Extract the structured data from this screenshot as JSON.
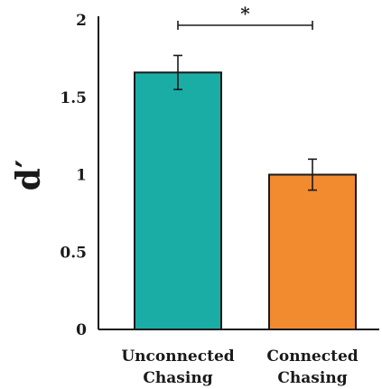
{
  "chart_data": {
    "type": "bar",
    "categories": [
      [
        "Unconnected",
        "Chasing"
      ],
      [
        "Connected",
        "Chasing"
      ]
    ],
    "values": [
      1.66,
      1.0
    ],
    "error": [
      0.11,
      0.1
    ],
    "colors": [
      "#19ada6",
      "#f28a30"
    ],
    "ylabel": "d′",
    "ylim": [
      0,
      2
    ],
    "yticks": [
      "0",
      "0.5",
      "1",
      "1.5",
      "2"
    ],
    "yticks_values": [
      0,
      0.5,
      1,
      1.5,
      2
    ],
    "significance": {
      "between": [
        0,
        1
      ],
      "label": "*"
    },
    "grid": false
  }
}
